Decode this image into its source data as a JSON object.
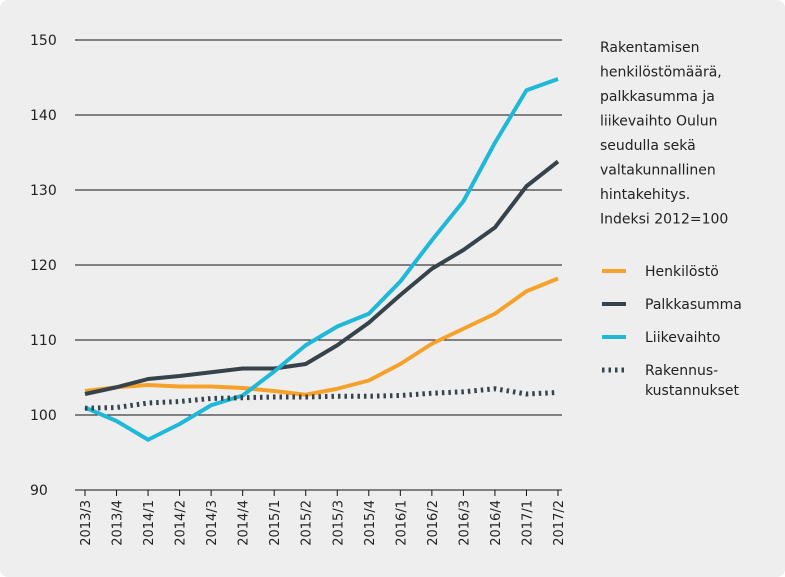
{
  "chart_data": {
    "type": "line",
    "annotation": "Rakentamisen\nhenkilöstömäärä,\npalkkasumma ja\nliikevaihto Oulun\nseudulla sekä\nvaltakunnallinen\nhintakehitys.\nIndeksi 2012=100",
    "categories": [
      "2013/3",
      "2013/4",
      "2014/1",
      "2014/2",
      "2014/3",
      "2014/4",
      "2015/1",
      "2015/2",
      "2015/3",
      "2015/4",
      "2016/1",
      "2016/2",
      "2016/3",
      "2016/4",
      "2017/1",
      "2017/2"
    ],
    "series": [
      {
        "name": "Henkilöstö",
        "color": "#f6a22a",
        "dash": "solid",
        "values": [
          103.2,
          103.7,
          104,
          103.8,
          103.8,
          103.6,
          103.2,
          102.7,
          103.5,
          104.6,
          106.8,
          109.5,
          111.5,
          113.5,
          116.5,
          118.2
        ]
      },
      {
        "name": "Palkkasumma",
        "color": "#36434b",
        "dash": "solid",
        "values": [
          102.8,
          103.7,
          104.8,
          105.2,
          105.7,
          106.2,
          106.2,
          106.8,
          109.3,
          112.3,
          116,
          119.5,
          122,
          125,
          130.5,
          133.8
        ]
      },
      {
        "name": "Liikevaihto",
        "color": "#1fb8d6",
        "dash": "solid",
        "values": [
          101,
          99.2,
          96.7,
          98.8,
          101.3,
          102.6,
          105.8,
          109.3,
          111.8,
          113.5,
          117.8,
          123.3,
          128.5,
          136.3,
          143.3,
          144.8
        ]
      },
      {
        "name": "Rakennus-\nkustannukset",
        "color": "#36434b",
        "dash": "dotted",
        "values": [
          100.9,
          101,
          101.6,
          101.8,
          102.2,
          102.3,
          102.4,
          102.4,
          102.5,
          102.5,
          102.6,
          102.9,
          103.1,
          103.5,
          102.8,
          103
        ]
      }
    ],
    "ylim": [
      90,
      150
    ],
    "yticks": [
      90,
      100,
      110,
      120,
      130,
      140,
      150
    ],
    "grid": true
  }
}
